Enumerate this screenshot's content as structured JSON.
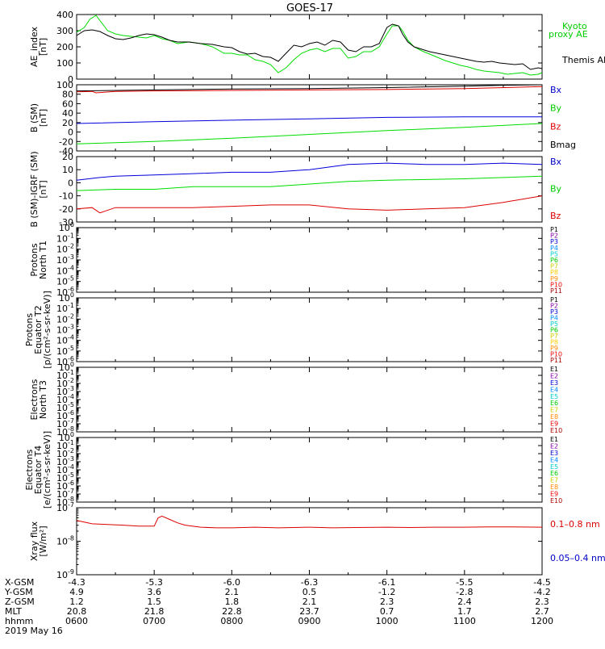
{
  "title": "GOES-17",
  "chart_data": [
    {
      "type": "line",
      "ylabel": [
        "AE_index",
        "[nT]"
      ],
      "ylim": [
        0,
        400
      ],
      "yticks": [
        0,
        100,
        200,
        300,
        400
      ],
      "tick_format": "linear",
      "legend": [
        {
          "name": "Kyoto proxy AE",
          "lines": [
            "Kyoto",
            "proxy AE"
          ],
          "color": "#00cc00"
        },
        {
          "name": "Themis AE",
          "lines": [
            "Themis AE"
          ],
          "color": "#000000"
        }
      ],
      "series": [
        {
          "name": "Kyoto proxy AE",
          "color": "#00dd00",
          "x": [
            6.0,
            6.1,
            6.17,
            6.25,
            6.32,
            6.4,
            6.5,
            6.6,
            6.7,
            6.8,
            6.9,
            7.0,
            7.1,
            7.2,
            7.3,
            7.45,
            7.6,
            7.75,
            7.9,
            8.0,
            8.1,
            8.2,
            8.3,
            8.4,
            8.5,
            8.6,
            8.7,
            8.8,
            8.9,
            9.0,
            9.1,
            9.2,
            9.3,
            9.4,
            9.5,
            9.6,
            9.7,
            9.8,
            9.9,
            10.0,
            10.07,
            10.15,
            10.2,
            10.27,
            10.35,
            10.45,
            10.55,
            10.65,
            10.75,
            10.85,
            10.95,
            11.05,
            11.15,
            11.25,
            11.35,
            11.45,
            11.55,
            11.65,
            11.75,
            11.85,
            11.95,
            12.0
          ],
          "y": [
            290,
            320,
            370,
            395,
            350,
            300,
            280,
            270,
            265,
            260,
            255,
            270,
            250,
            240,
            220,
            230,
            220,
            200,
            160,
            160,
            150,
            150,
            120,
            110,
            90,
            40,
            70,
            120,
            160,
            180,
            190,
            170,
            190,
            190,
            130,
            140,
            170,
            170,
            200,
            280,
            330,
            330,
            300,
            240,
            200,
            175,
            155,
            135,
            115,
            100,
            85,
            75,
            60,
            50,
            45,
            40,
            30,
            35,
            40,
            25,
            30,
            40
          ]
        },
        {
          "name": "Themis AE",
          "color": "#000000",
          "x": [
            6.0,
            6.1,
            6.2,
            6.3,
            6.4,
            6.5,
            6.6,
            6.7,
            6.8,
            6.9,
            7.0,
            7.1,
            7.2,
            7.3,
            7.45,
            7.6,
            7.75,
            7.9,
            8.0,
            8.1,
            8.2,
            8.3,
            8.4,
            8.5,
            8.6,
            8.7,
            8.8,
            8.9,
            9.0,
            9.1,
            9.2,
            9.3,
            9.4,
            9.5,
            9.6,
            9.7,
            9.8,
            9.9,
            10.0,
            10.07,
            10.15,
            10.2,
            10.27,
            10.35,
            10.45,
            10.55,
            10.65,
            10.75,
            10.85,
            10.95,
            11.05,
            11.15,
            11.25,
            11.35,
            11.45,
            11.55,
            11.65,
            11.75,
            11.85,
            11.95,
            12.0
          ],
          "y": [
            270,
            300,
            305,
            295,
            270,
            250,
            245,
            255,
            270,
            280,
            275,
            260,
            240,
            230,
            230,
            220,
            215,
            200,
            195,
            170,
            155,
            160,
            140,
            135,
            110,
            160,
            210,
            200,
            220,
            230,
            210,
            240,
            230,
            180,
            170,
            200,
            200,
            220,
            320,
            340,
            330,
            280,
            230,
            200,
            185,
            170,
            160,
            150,
            140,
            130,
            120,
            110,
            105,
            110,
            100,
            95,
            90,
            95,
            60,
            70,
            65
          ]
        }
      ]
    },
    {
      "type": "line",
      "ylabel": [
        "B (SM)",
        "[nT]"
      ],
      "ylim": [
        -40,
        100
      ],
      "yticks": [
        -40,
        -20,
        0,
        20,
        40,
        60,
        80,
        100
      ],
      "tick_format": "linear",
      "legend": [
        {
          "name": "Bx",
          "lines": [
            "Bx"
          ],
          "color": "#0000cc"
        },
        {
          "name": "By",
          "lines": [
            "By"
          ],
          "color": "#00cc00"
        },
        {
          "name": "Bz",
          "lines": [
            "Bz"
          ],
          "color": "#dd0000"
        },
        {
          "name": "Bmag",
          "lines": [
            "Bmag"
          ],
          "color": "#000000"
        }
      ],
      "series": [
        {
          "name": "Bmag",
          "color": "#000000",
          "x": [
            6,
            7,
            8,
            9,
            10,
            11,
            11.5,
            12
          ],
          "y": [
            87,
            89,
            91,
            92,
            94,
            97,
            99,
            100
          ]
        },
        {
          "name": "Bz",
          "color": "#dd0000",
          "x": [
            6,
            6.2,
            6.25,
            6.5,
            7,
            8,
            9,
            10,
            11,
            12
          ],
          "y": [
            85,
            86,
            83,
            86,
            87,
            88,
            89,
            90,
            92,
            96
          ]
        },
        {
          "name": "Bx",
          "color": "#0000dd",
          "x": [
            6,
            7,
            8,
            9,
            10,
            11,
            12
          ],
          "y": [
            18,
            22,
            25,
            28,
            31,
            32,
            32
          ]
        },
        {
          "name": "By",
          "color": "#00dd00",
          "x": [
            6,
            7,
            8,
            9,
            10,
            11,
            12
          ],
          "y": [
            -25,
            -20,
            -13,
            -5,
            3,
            10,
            18
          ]
        }
      ]
    },
    {
      "type": "line",
      "ylabel": [
        "B (SM)-IGRF (SM)",
        "[nT]"
      ],
      "ylim": [
        -30,
        20
      ],
      "yticks": [
        -30,
        -20,
        -10,
        0,
        10,
        20
      ],
      "tick_format": "linear",
      "legend": [
        {
          "name": "Bx",
          "lines": [
            "Bx"
          ],
          "color": "#0000cc"
        },
        {
          "name": "By",
          "lines": [
            "By"
          ],
          "color": "#00cc00"
        },
        {
          "name": "Bz",
          "lines": [
            "Bz"
          ],
          "color": "#dd0000"
        }
      ],
      "series": [
        {
          "name": "Bx",
          "color": "#0000dd",
          "x": [
            6,
            6.3,
            6.5,
            7,
            7.5,
            8,
            8.5,
            9,
            9.5,
            10,
            10.5,
            11,
            11.5,
            12
          ],
          "y": [
            2,
            4,
            5,
            6,
            7,
            8,
            8,
            10,
            14,
            15,
            14,
            14,
            15,
            14
          ]
        },
        {
          "name": "By",
          "color": "#00dd00",
          "x": [
            6,
            6.5,
            7,
            7.5,
            8,
            8.5,
            9,
            9.5,
            10,
            11,
            12
          ],
          "y": [
            -6,
            -5,
            -5,
            -3,
            -3,
            -3,
            -1,
            1,
            2,
            3,
            5
          ]
        },
        {
          "name": "Bz",
          "color": "#dd0000",
          "x": [
            6,
            6.2,
            6.3,
            6.5,
            7,
            7.5,
            8,
            8.5,
            9,
            9.5,
            10,
            10.5,
            11,
            11.5,
            12
          ],
          "y": [
            -20,
            -19,
            -23,
            -19,
            -19,
            -19,
            -18,
            -17,
            -17,
            -20,
            -21,
            -20,
            -19,
            -15,
            -10
          ]
        }
      ]
    },
    {
      "type": "line",
      "ylabel": [
        "Protons",
        "North T1"
      ],
      "ylim": [
        -6,
        0
      ],
      "yticks": [
        0,
        -1,
        -2,
        -3,
        -4,
        -5,
        -6
      ],
      "tick_format": "log10",
      "legend": [
        {
          "name": "P1",
          "lines": [
            "P1"
          ],
          "color": "#000000"
        },
        {
          "name": "P2",
          "lines": [
            "P2"
          ],
          "color": "#8800aa"
        },
        {
          "name": "P3",
          "lines": [
            "P3"
          ],
          "color": "#0000cc"
        },
        {
          "name": "P4",
          "lines": [
            "P4"
          ],
          "color": "#0088ff"
        },
        {
          "name": "P5",
          "lines": [
            "P5"
          ],
          "color": "#00cccc"
        },
        {
          "name": "P6",
          "lines": [
            "P6"
          ],
          "color": "#00cc00"
        },
        {
          "name": "P7",
          "lines": [
            "P7"
          ],
          "color": "#cccc00"
        },
        {
          "name": "P8",
          "lines": [
            "P8"
          ],
          "color": "#ffcc00"
        },
        {
          "name": "P9",
          "lines": [
            "P9"
          ],
          "color": "#ff8800"
        },
        {
          "name": "P10",
          "lines": [
            "P10"
          ],
          "color": "#ee0000"
        },
        {
          "name": "P11",
          "lines": [
            "P11"
          ],
          "color": "#aa0000"
        }
      ],
      "series": []
    },
    {
      "type": "line",
      "ylabel": [
        "Protons",
        "Equator T2",
        "[p/(cm²-s-sr-keV)]"
      ],
      "ylim": [
        -6,
        0
      ],
      "yticks": [
        0,
        -1,
        -2,
        -3,
        -4,
        -5,
        -6
      ],
      "tick_format": "log10",
      "legend": [
        {
          "name": "P1",
          "lines": [
            "P1"
          ],
          "color": "#000000"
        },
        {
          "name": "P2",
          "lines": [
            "P2"
          ],
          "color": "#8800aa"
        },
        {
          "name": "P3",
          "lines": [
            "P3"
          ],
          "color": "#0000cc"
        },
        {
          "name": "P4",
          "lines": [
            "P4"
          ],
          "color": "#0088ff"
        },
        {
          "name": "P5",
          "lines": [
            "P5"
          ],
          "color": "#00cccc"
        },
        {
          "name": "P6",
          "lines": [
            "P6"
          ],
          "color": "#00cc00"
        },
        {
          "name": "P7",
          "lines": [
            "P7"
          ],
          "color": "#cccc00"
        },
        {
          "name": "P8",
          "lines": [
            "P8"
          ],
          "color": "#ffcc00"
        },
        {
          "name": "P9",
          "lines": [
            "P9"
          ],
          "color": "#ff8800"
        },
        {
          "name": "P10",
          "lines": [
            "P10"
          ],
          "color": "#ee0000"
        },
        {
          "name": "P11",
          "lines": [
            "P11"
          ],
          "color": "#aa0000"
        }
      ],
      "series": []
    },
    {
      "type": "line",
      "ylabel": [
        "Electrons",
        "North T3"
      ],
      "ylim": [
        -8,
        0
      ],
      "yticks": [
        0,
        -1,
        -2,
        -3,
        -4,
        -5,
        -6,
        -7,
        -8
      ],
      "tick_format": "log10",
      "legend": [
        {
          "name": "E1",
          "lines": [
            "E1"
          ],
          "color": "#000000"
        },
        {
          "name": "E2",
          "lines": [
            "E2"
          ],
          "color": "#8800aa"
        },
        {
          "name": "E3",
          "lines": [
            "E3"
          ],
          "color": "#0000cc"
        },
        {
          "name": "E4",
          "lines": [
            "E4"
          ],
          "color": "#0088ff"
        },
        {
          "name": "E5",
          "lines": [
            "E5"
          ],
          "color": "#00cccc"
        },
        {
          "name": "E6",
          "lines": [
            "E6"
          ],
          "color": "#00cc00"
        },
        {
          "name": "E7",
          "lines": [
            "E7"
          ],
          "color": "#cccc00"
        },
        {
          "name": "E8",
          "lines": [
            "E8"
          ],
          "color": "#ff8800"
        },
        {
          "name": "E9",
          "lines": [
            "E9"
          ],
          "color": "#ee0000"
        },
        {
          "name": "E10",
          "lines": [
            "E10"
          ],
          "color": "#aa0000"
        }
      ],
      "series": []
    },
    {
      "type": "line",
      "ylabel": [
        "Electrons",
        "Equator T4",
        "[e/(cm²-s-sr-keV)]"
      ],
      "ylim": [
        -8,
        0
      ],
      "yticks": [
        0,
        -1,
        -2,
        -3,
        -4,
        -5,
        -6,
        -7,
        -8
      ],
      "tick_format": "log10",
      "legend": [
        {
          "name": "E1",
          "lines": [
            "E1"
          ],
          "color": "#000000"
        },
        {
          "name": "E2",
          "lines": [
            "E2"
          ],
          "color": "#8800aa"
        },
        {
          "name": "E3",
          "lines": [
            "E3"
          ],
          "color": "#0000cc"
        },
        {
          "name": "E4",
          "lines": [
            "E4"
          ],
          "color": "#0088ff"
        },
        {
          "name": "E5",
          "lines": [
            "E5"
          ],
          "color": "#00cccc"
        },
        {
          "name": "E6",
          "lines": [
            "E6"
          ],
          "color": "#00cc00"
        },
        {
          "name": "E7",
          "lines": [
            "E7"
          ],
          "color": "#cccc00"
        },
        {
          "name": "E8",
          "lines": [
            "E8"
          ],
          "color": "#ff8800"
        },
        {
          "name": "E9",
          "lines": [
            "E9"
          ],
          "color": "#ee0000"
        },
        {
          "name": "E10",
          "lines": [
            "E10"
          ],
          "color": "#aa0000"
        }
      ],
      "series": []
    },
    {
      "type": "line",
      "ylabel": [
        "Xray flux",
        "[W/m²]"
      ],
      "ylim": [
        -9,
        -7
      ],
      "yticks": [
        -7,
        -8,
        -9
      ],
      "tick_format": "log10",
      "legend": [
        {
          "name": "0.1-0.8 nm",
          "lines": [
            "0.1–0.8 nm"
          ],
          "color": "#dd0000"
        },
        {
          "name": "0.05-0.4 nm",
          "lines": [
            "0.05–0.4 nm"
          ],
          "color": "#0000cc"
        }
      ],
      "series": [
        {
          "name": "0.1-0.8 nm",
          "color": "#dd0000",
          "x": [
            6.0,
            6.2,
            6.4,
            6.6,
            6.8,
            7.0,
            7.05,
            7.1,
            7.2,
            7.3,
            7.4,
            7.6,
            7.8,
            8.0,
            8.3,
            8.6,
            9.0,
            9.3,
            9.6,
            10.0,
            10.3,
            10.6,
            11.0,
            11.3,
            11.6,
            12.0
          ],
          "y": [
            -7.38,
            -7.48,
            -7.5,
            -7.52,
            -7.55,
            -7.55,
            -7.3,
            -7.25,
            -7.35,
            -7.45,
            -7.52,
            -7.58,
            -7.6,
            -7.6,
            -7.58,
            -7.6,
            -7.58,
            -7.6,
            -7.59,
            -7.58,
            -7.59,
            -7.58,
            -7.58,
            -7.57,
            -7.57,
            -7.58
          ]
        }
      ]
    }
  ],
  "xaxis": {
    "x": [
      6,
      7,
      8,
      9,
      10,
      11,
      12
    ],
    "rows": [
      {
        "label": "X-GSM",
        "values": [
          "-4.3",
          "-5.3",
          "-6.0",
          "-6.3",
          "-6.1",
          "-5.5",
          "-4.5"
        ]
      },
      {
        "label": "Y-GSM",
        "values": [
          "4.9",
          "3.6",
          "2.1",
          "0.5",
          "-1.2",
          "-2.8",
          "-4.2"
        ]
      },
      {
        "label": "Z-GSM",
        "values": [
          "1.2",
          "1.5",
          "1.8",
          "2.1",
          "2.3",
          "2.4",
          "2.3"
        ]
      },
      {
        "label": "MLT",
        "values": [
          "20.8",
          "21.8",
          "22.8",
          "23.7",
          "0.7",
          "1.7",
          "2.7"
        ]
      },
      {
        "label": "hhmm",
        "values": [
          "0600",
          "0700",
          "0800",
          "0900",
          "1000",
          "1100",
          "1200"
        ]
      }
    ],
    "date": "2019 May 16"
  }
}
